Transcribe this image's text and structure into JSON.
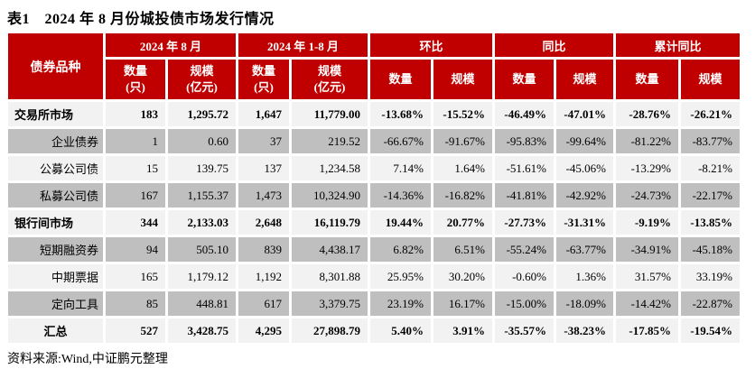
{
  "title": "表1　2024 年 8 月份城投债市场发行情况",
  "source_note": "资料来源:Wind,中证鹏元整理",
  "colors": {
    "header_bg": "#C00000",
    "header_text": "#FFFFFF",
    "row_light": "#F2F2F2",
    "row_dark": "#BFBFBF"
  },
  "table": {
    "corner_header": "债券品种",
    "groups": [
      {
        "label": "2024 年 8 月",
        "sub": [
          "数量\n(只)",
          "规模\n(亿元)"
        ]
      },
      {
        "label": "2024 年 1-8 月",
        "sub": [
          "数量\n(只)",
          "规模\n(亿元)"
        ]
      },
      {
        "label": "环比",
        "sub": [
          "数量",
          "规模"
        ]
      },
      {
        "label": "同比",
        "sub": [
          "数量",
          "规模"
        ]
      },
      {
        "label": "累计同比",
        "sub": [
          "数量",
          "规模"
        ]
      }
    ],
    "rows": [
      {
        "label": "交易所市场",
        "style": "parent",
        "values": [
          "183",
          "1,295.72",
          "1,647",
          "11,779.00",
          "-13.68%",
          "-15.52%",
          "-46.49%",
          "-47.01%",
          "-28.76%",
          "-26.21%"
        ]
      },
      {
        "label": "企业债券",
        "style": "child",
        "values": [
          "1",
          "0.60",
          "37",
          "219.52",
          "-66.67%",
          "-91.67%",
          "-95.83%",
          "-99.64%",
          "-81.22%",
          "-83.77%"
        ]
      },
      {
        "label": "公募公司债",
        "style": "child",
        "values": [
          "15",
          "139.75",
          "137",
          "1,234.58",
          "7.14%",
          "1.64%",
          "-51.61%",
          "-45.06%",
          "-13.29%",
          "-8.21%"
        ]
      },
      {
        "label": "私募公司债",
        "style": "child",
        "values": [
          "167",
          "1,155.37",
          "1,473",
          "10,324.90",
          "-14.36%",
          "-16.82%",
          "-41.81%",
          "-42.92%",
          "-24.73%",
          "-22.17%"
        ]
      },
      {
        "label": "银行间市场",
        "style": "parent",
        "values": [
          "344",
          "2,133.03",
          "2,648",
          "16,119.79",
          "19.44%",
          "20.77%",
          "-27.73%",
          "-31.31%",
          "-9.19%",
          "-13.85%"
        ]
      },
      {
        "label": "短期融资券",
        "style": "child",
        "values": [
          "94",
          "505.10",
          "839",
          "4,438.17",
          "6.82%",
          "6.51%",
          "-55.24%",
          "-63.77%",
          "-34.91%",
          "-45.18%"
        ]
      },
      {
        "label": "中期票据",
        "style": "child",
        "values": [
          "165",
          "1,179.12",
          "1,192",
          "8,301.88",
          "25.95%",
          "30.20%",
          "-0.60%",
          "1.36%",
          "31.57%",
          "33.19%"
        ]
      },
      {
        "label": "定向工具",
        "style": "child",
        "values": [
          "85",
          "448.81",
          "617",
          "3,379.75",
          "23.19%",
          "16.17%",
          "-15.00%",
          "-18.09%",
          "-14.42%",
          "-22.87%"
        ]
      },
      {
        "label": "汇总",
        "style": "total",
        "values": [
          "527",
          "3,428.75",
          "4,295",
          "27,898.79",
          "5.40%",
          "3.91%",
          "-35.57%",
          "-38.23%",
          "-17.85%",
          "-19.54%"
        ]
      }
    ]
  }
}
